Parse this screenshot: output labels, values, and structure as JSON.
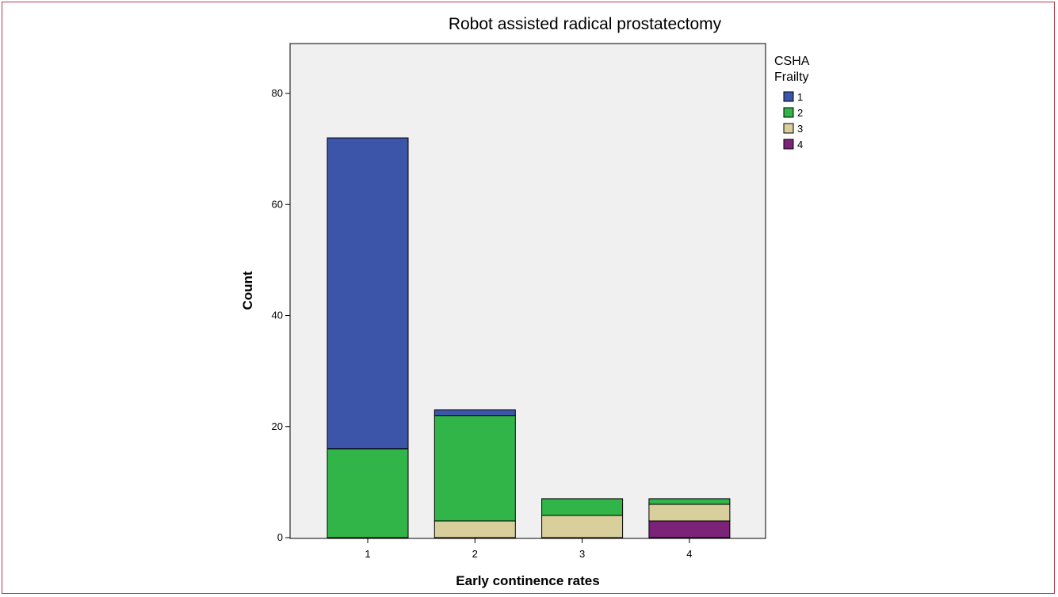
{
  "chart_data": {
    "type": "bar",
    "stacked": true,
    "title": "Robot assisted radical prostatectomy",
    "xlabel": "Early continence rates",
    "ylabel": "Count",
    "categories": [
      "1",
      "2",
      "3",
      "4"
    ],
    "ylim": [
      0,
      80
    ],
    "yticks": [
      0,
      20,
      40,
      60,
      80
    ],
    "legend": {
      "title_lines": [
        "CSHA",
        "Frailty"
      ],
      "placement": "right"
    },
    "series": [
      {
        "name": "1",
        "color": "#3c55a9",
        "values": [
          56,
          1,
          0,
          0
        ]
      },
      {
        "name": "2",
        "color": "#31b448",
        "values": [
          16,
          19,
          3,
          1
        ]
      },
      {
        "name": "3",
        "color": "#d8cf9c",
        "values": [
          0,
          3,
          4,
          3
        ]
      },
      {
        "name": "4",
        "color": "#7b2378",
        "values": [
          0,
          0,
          0,
          3
        ]
      }
    ],
    "stack_order": [
      "4",
      "3",
      "2",
      "1"
    ],
    "plot_background": "#f0f0f0"
  }
}
